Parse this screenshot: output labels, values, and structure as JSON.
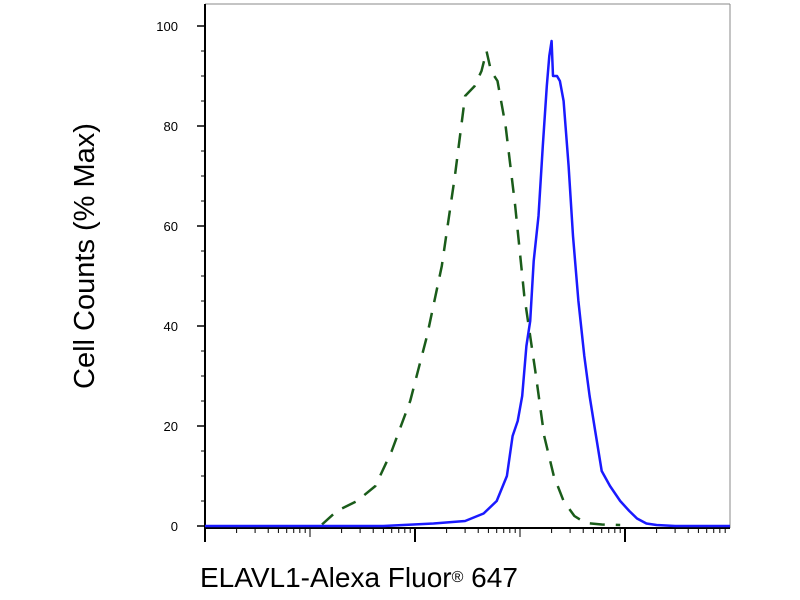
{
  "chart_data": {
    "type": "line",
    "ylabel": "Cell Counts (% Max)",
    "xlabel_main": "ELAVL1-Alexa Fluor",
    "xlabel_sup": "®",
    "xlabel_tail": " 647",
    "x_scale": "log",
    "xlim": [
      10,
      1000000
    ],
    "ylim": [
      0,
      100
    ],
    "yticks": [
      0,
      20,
      40,
      60,
      80,
      100
    ],
    "ytick_labels": [
      "0",
      "20",
      "40",
      "60",
      "80",
      "100"
    ],
    "series": [
      {
        "color": "#1a5c1a",
        "style": "dashed",
        "points": [
          [
            130,
            0.3
          ],
          [
            180,
            3
          ],
          [
            280,
            5
          ],
          [
            420,
            8
          ],
          [
            600,
            15
          ],
          [
            900,
            25
          ],
          [
            1300,
            38
          ],
          [
            1800,
            52
          ],
          [
            2400,
            70
          ],
          [
            3000,
            86
          ],
          [
            3700,
            88
          ],
          [
            4300,
            91
          ],
          [
            4800,
            95
          ],
          [
            5300,
            91
          ],
          [
            6100,
            89
          ],
          [
            7300,
            80
          ],
          [
            9000,
            64
          ],
          [
            11000,
            46
          ],
          [
            14000,
            31
          ],
          [
            17000,
            18
          ],
          [
            21000,
            10
          ],
          [
            26000,
            5
          ],
          [
            33000,
            2
          ],
          [
            42000,
            0.6
          ],
          [
            60000,
            0.3
          ],
          [
            90000,
            0.2
          ]
        ]
      },
      {
        "color": "#1a1aff",
        "style": "solid",
        "points": [
          [
            10,
            0
          ],
          [
            500,
            0
          ],
          [
            1500,
            0.5
          ],
          [
            3000,
            1
          ],
          [
            4500,
            2.5
          ],
          [
            6000,
            5
          ],
          [
            7500,
            10
          ],
          [
            8500,
            18
          ],
          [
            9500,
            21
          ],
          [
            10500,
            26
          ],
          [
            11500,
            36
          ],
          [
            12500,
            41
          ],
          [
            13500,
            53
          ],
          [
            15000,
            62
          ],
          [
            16500,
            76
          ],
          [
            18000,
            88
          ],
          [
            19000,
            94
          ],
          [
            20000,
            97
          ],
          [
            20600,
            90
          ],
          [
            22500,
            90
          ],
          [
            24000,
            89
          ],
          [
            26000,
            85
          ],
          [
            29000,
            72
          ],
          [
            32000,
            58
          ],
          [
            36000,
            45
          ],
          [
            41000,
            34
          ],
          [
            46000,
            26
          ],
          [
            52000,
            19
          ],
          [
            60000,
            11
          ],
          [
            72000,
            8
          ],
          [
            90000,
            5
          ],
          [
            110000,
            3
          ],
          [
            130000,
            1.5
          ],
          [
            160000,
            0.5
          ],
          [
            200000,
            0.2
          ],
          [
            300000,
            0
          ],
          [
            1000000,
            0
          ]
        ]
      }
    ]
  }
}
